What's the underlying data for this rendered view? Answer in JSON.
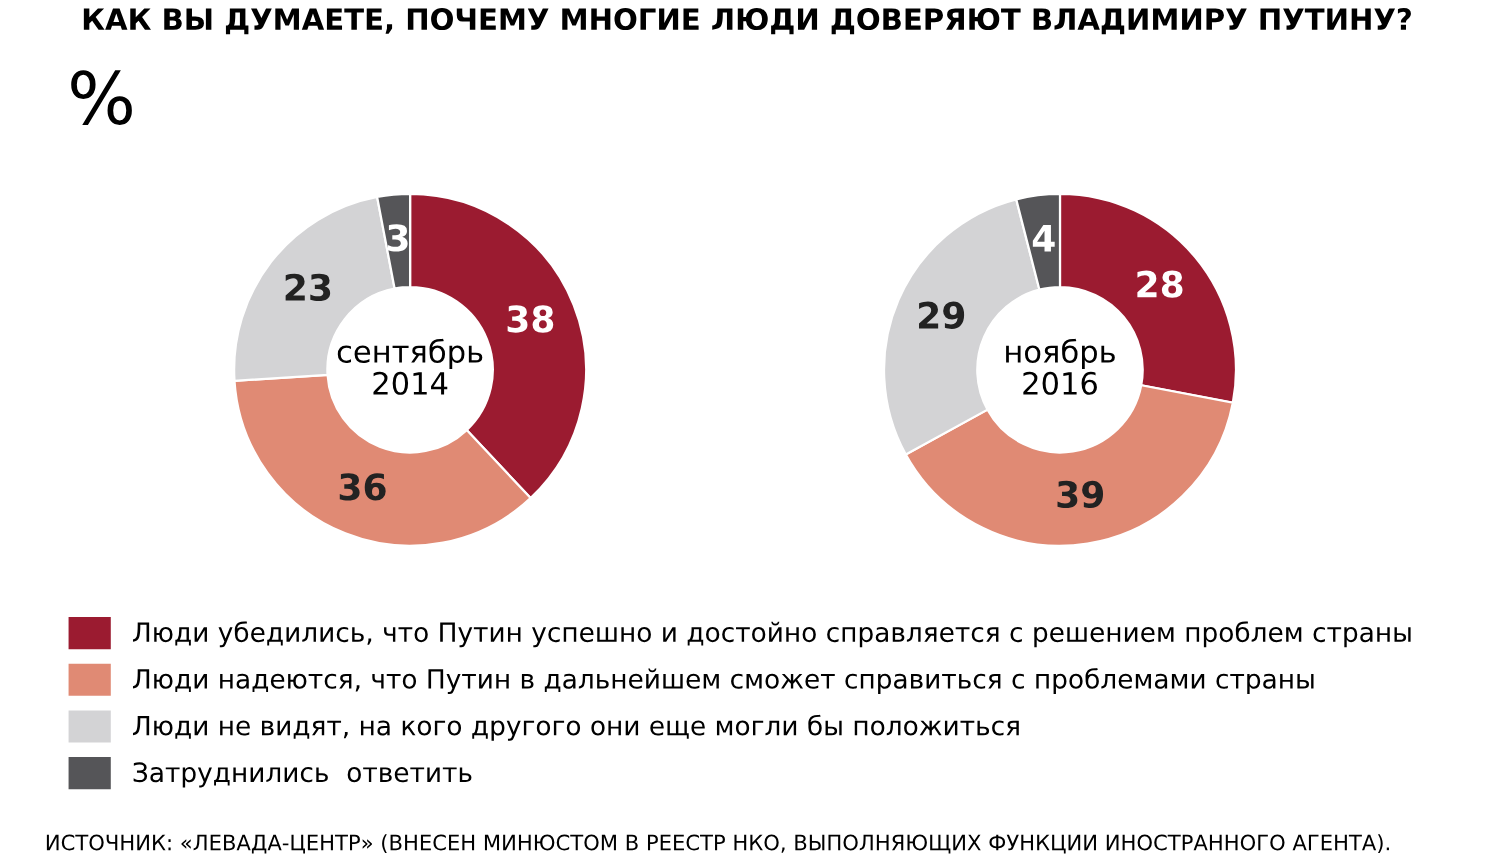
{
  "chart_data": [
    {
      "type": "donut",
      "title": "КАК ВЫ ДУМАЕТЕ, ПОЧЕМУ МНОГИЕ ЛЮДИ ДОВЕРЯЮТ ВЛАДИМИРУ ПУТИНУ?",
      "subtitle": "сентябрь\n2014",
      "categories": [
        "Люди убедились, что Путин успешно и достойно справляется с решением проблем страны",
        "Люди надеются, что Путин в дальнейшем сможет справиться с проблемами страны",
        "Люди не видят, на кого другого они еще могли бы положиться",
        "Затруднились  ответить"
      ],
      "values": [
        38,
        36,
        23,
        3
      ],
      "colors": [
        "#9b1b30",
        "#e08a74",
        "#d3d3d5",
        "#555558"
      ],
      "data_labels": true,
      "legend": "bottom",
      "annotations": [
        "%",
        "ИСТОЧНИК: «ЛЕВАДА-ЦЕНТР» (ВНЕСЕН МИНЮСТОМ В РЕЕСТР НКО, ВЫПОЛНЯЮЩИХ ФУНКЦИИ ИНОСТРАННОГО АГЕНТА)."
      ]
    },
    {
      "type": "donut",
      "subtitle": "ноябрь\n2016",
      "categories": [
        null,
        null,
        null,
        null
      ],
      "values": [
        28,
        39,
        29,
        4
      ],
      "colors": [
        "#9b1b30",
        "#e08a74",
        "#d3d3d5",
        "#555558"
      ],
      "data_labels": true
    }
  ]
}
